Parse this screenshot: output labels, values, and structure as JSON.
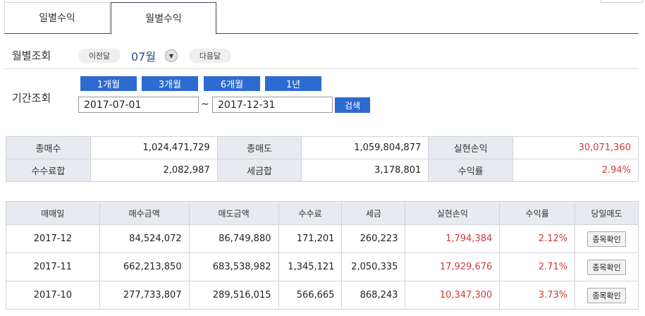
{
  "tabs": [
    "일별수익",
    "월별수익"
  ],
  "month_nav": {
    "label": "월별조회",
    "prev": "이전달",
    "month": "07월",
    "next": "다음달"
  },
  "period": {
    "label": "기간조회",
    "buttons": [
      "1개월",
      "3개월",
      "6개월",
      "1년"
    ],
    "start": "2017-07-01",
    "tilde": "~",
    "end": "2017-12-31",
    "search": "검색"
  },
  "summary": {
    "buy_total_label": "총매수",
    "buy_total": "1,024,471,729",
    "sell_total_label": "총매도",
    "sell_total": "1,059,804,877",
    "realized_label": "실현손익",
    "realized": "30,071,360",
    "fee_label": "수수료합",
    "fee": "2,082,987",
    "tax_label": "세금합",
    "tax": "3,178,801",
    "rate_label": "수익률",
    "rate": "2.94%"
  },
  "detail": {
    "headers": [
      "매매일",
      "매수금액",
      "매도금액",
      "수수료",
      "세금",
      "실현손익",
      "수익률",
      "당일매도"
    ],
    "rows": [
      {
        "date": "2017-12",
        "buy": "84,524,072",
        "sell": "86,749,880",
        "fee": "171,201",
        "tax": "260,223",
        "pnl": "1,794,384",
        "rate": "2.12%",
        "action": "종목확인"
      },
      {
        "date": "2017-11",
        "buy": "662,213,850",
        "sell": "683,538,982",
        "fee": "1,345,121",
        "tax": "2,050,335",
        "pnl": "17,929,676",
        "rate": "2.71%",
        "action": "종목확인"
      },
      {
        "date": "2017-10",
        "buy": "277,733,807",
        "sell": "289,516,015",
        "fee": "566,665",
        "tax": "868,243",
        "pnl": "10,347,300",
        "rate": "3.73%",
        "action": "종목확인"
      }
    ]
  },
  "colors": {
    "accent": "#2e6bd0",
    "profit": "#d43a3a",
    "header_bg": "#e7eaee"
  }
}
